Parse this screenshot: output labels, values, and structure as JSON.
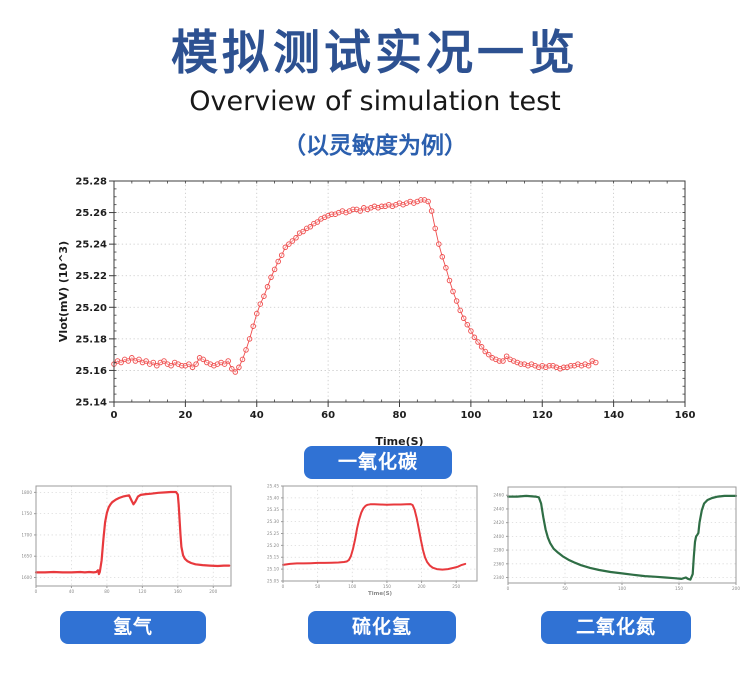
{
  "header": {
    "title": "模拟测试实况一览",
    "subtitle": "Overview of simulation test",
    "note": "（以灵敏度为例）"
  },
  "colors": {
    "title_blue": "#2d5191",
    "note_blue": "#2b5fae",
    "badge_blue": "#3072d4",
    "series_red": "#ef4d4d",
    "series_green": "#2f6e45"
  },
  "labels": {
    "co": "一氧化碳",
    "h2": "氢气",
    "h2s": "硫化氢",
    "no2": "二氧化氮"
  },
  "chart_data": [
    {
      "id": "co",
      "gas": "一氧化碳",
      "type": "scatter",
      "color": "#ef4d4d",
      "xlabel": "Time(S)",
      "ylabel": "Vlot(mV) (10^3)",
      "xlim": [
        0,
        160
      ],
      "ylim": [
        25.14,
        25.28
      ],
      "xticks": [
        "0",
        "20",
        "40",
        "60",
        "80",
        "100",
        "120",
        "140",
        "160"
      ],
      "yticks": [
        "25.14",
        "25.16",
        "25.18",
        "25.20",
        "25.22",
        "25.24",
        "25.26",
        "25.28"
      ],
      "x_minor": 5,
      "y_minor": 0.005,
      "grid": true,
      "points": [
        [
          0,
          25.164
        ],
        [
          1,
          25.166
        ],
        [
          2,
          25.165
        ],
        [
          3,
          25.167
        ],
        [
          4,
          25.166
        ],
        [
          5,
          25.168
        ],
        [
          6,
          25.166
        ],
        [
          7,
          25.167
        ],
        [
          8,
          25.165
        ],
        [
          9,
          25.166
        ],
        [
          10,
          25.164
        ],
        [
          11,
          25.165
        ],
        [
          12,
          25.163
        ],
        [
          13,
          25.165
        ],
        [
          14,
          25.166
        ],
        [
          15,
          25.164
        ],
        [
          16,
          25.163
        ],
        [
          17,
          25.165
        ],
        [
          18,
          25.164
        ],
        [
          19,
          25.163
        ],
        [
          20,
          25.163
        ],
        [
          21,
          25.164
        ],
        [
          22,
          25.162
        ],
        [
          23,
          25.164
        ],
        [
          24,
          25.168
        ],
        [
          25,
          25.167
        ],
        [
          26,
          25.165
        ],
        [
          27,
          25.164
        ],
        [
          28,
          25.163
        ],
        [
          29,
          25.164
        ],
        [
          30,
          25.165
        ],
        [
          31,
          25.164
        ],
        [
          32,
          25.166
        ],
        [
          33,
          25.161
        ],
        [
          34,
          25.159
        ],
        [
          35,
          25.162
        ],
        [
          36,
          25.167
        ],
        [
          37,
          25.173
        ],
        [
          38,
          25.18
        ],
        [
          39,
          25.188
        ],
        [
          40,
          25.196
        ],
        [
          41,
          25.202
        ],
        [
          42,
          25.207
        ],
        [
          43,
          25.213
        ],
        [
          44,
          25.219
        ],
        [
          45,
          25.224
        ],
        [
          46,
          25.229
        ],
        [
          47,
          25.233
        ],
        [
          48,
          25.238
        ],
        [
          49,
          25.24
        ],
        [
          50,
          25.242
        ],
        [
          51,
          25.244
        ],
        [
          52,
          25.247
        ],
        [
          53,
          25.248
        ],
        [
          54,
          25.25
        ],
        [
          55,
          25.251
        ],
        [
          56,
          25.253
        ],
        [
          57,
          25.254
        ],
        [
          58,
          25.256
        ],
        [
          59,
          25.257
        ],
        [
          60,
          25.258
        ],
        [
          61,
          25.259
        ],
        [
          62,
          25.259
        ],
        [
          63,
          25.26
        ],
        [
          64,
          25.261
        ],
        [
          65,
          25.26
        ],
        [
          66,
          25.261
        ],
        [
          67,
          25.262
        ],
        [
          68,
          25.262
        ],
        [
          69,
          25.261
        ],
        [
          70,
          25.263
        ],
        [
          71,
          25.262
        ],
        [
          72,
          25.263
        ],
        [
          73,
          25.264
        ],
        [
          74,
          25.263
        ],
        [
          75,
          25.264
        ],
        [
          76,
          25.264
        ],
        [
          77,
          25.265
        ],
        [
          78,
          25.264
        ],
        [
          79,
          25.265
        ],
        [
          80,
          25.266
        ],
        [
          81,
          25.265
        ],
        [
          82,
          25.266
        ],
        [
          83,
          25.267
        ],
        [
          84,
          25.266
        ],
        [
          85,
          25.267
        ],
        [
          86,
          25.268
        ],
        [
          87,
          25.268
        ],
        [
          88,
          25.267
        ],
        [
          89,
          25.261
        ],
        [
          90,
          25.25
        ],
        [
          91,
          25.24
        ],
        [
          92,
          25.232
        ],
        [
          93,
          25.225
        ],
        [
          94,
          25.217
        ],
        [
          95,
          25.21
        ],
        [
          96,
          25.204
        ],
        [
          97,
          25.198
        ],
        [
          98,
          25.193
        ],
        [
          99,
          25.189
        ],
        [
          100,
          25.185
        ],
        [
          101,
          25.181
        ],
        [
          102,
          25.178
        ],
        [
          103,
          25.175
        ],
        [
          104,
          25.172
        ],
        [
          105,
          25.17
        ],
        [
          106,
          25.168
        ],
        [
          107,
          25.167
        ],
        [
          108,
          25.166
        ],
        [
          109,
          25.166
        ],
        [
          110,
          25.169
        ],
        [
          111,
          25.167
        ],
        [
          112,
          25.166
        ],
        [
          113,
          25.165
        ],
        [
          114,
          25.164
        ],
        [
          115,
          25.164
        ],
        [
          116,
          25.163
        ],
        [
          117,
          25.164
        ],
        [
          118,
          25.163
        ],
        [
          119,
          25.162
        ],
        [
          120,
          25.163
        ],
        [
          121,
          25.162
        ],
        [
          122,
          25.163
        ],
        [
          123,
          25.163
        ],
        [
          124,
          25.162
        ],
        [
          125,
          25.161
        ],
        [
          126,
          25.162
        ],
        [
          127,
          25.162
        ],
        [
          128,
          25.163
        ],
        [
          129,
          25.163
        ],
        [
          130,
          25.164
        ],
        [
          131,
          25.163
        ],
        [
          132,
          25.164
        ],
        [
          133,
          25.163
        ],
        [
          134,
          25.166
        ],
        [
          135,
          25.165
        ]
      ]
    },
    {
      "id": "h2",
      "gas": "氢气",
      "type": "line",
      "color": "#e8393d",
      "xlabel": "",
      "ylabel": "",
      "xlim": [
        0,
        220
      ],
      "ylim": [
        1580,
        1815
      ],
      "xticks": [
        "0",
        "40",
        "80",
        "120",
        "160",
        "200"
      ],
      "yticks": [
        "1600",
        "1650",
        "1700",
        "1750",
        "1800"
      ],
      "grid": true,
      "points": [
        [
          0,
          1612
        ],
        [
          10,
          1612
        ],
        [
          20,
          1613
        ],
        [
          30,
          1612
        ],
        [
          40,
          1612
        ],
        [
          50,
          1613
        ],
        [
          55,
          1612
        ],
        [
          60,
          1613
        ],
        [
          65,
          1612
        ],
        [
          68,
          1613
        ],
        [
          70,
          1617
        ],
        [
          71,
          1608
        ],
        [
          72,
          1613
        ],
        [
          74,
          1640
        ],
        [
          76,
          1690
        ],
        [
          78,
          1730
        ],
        [
          80,
          1752
        ],
        [
          82,
          1765
        ],
        [
          84,
          1772
        ],
        [
          86,
          1777
        ],
        [
          90,
          1783
        ],
        [
          94,
          1787
        ],
        [
          98,
          1790
        ],
        [
          102,
          1792
        ],
        [
          105,
          1793
        ],
        [
          108,
          1780
        ],
        [
          110,
          1772
        ],
        [
          112,
          1778
        ],
        [
          115,
          1790
        ],
        [
          118,
          1794
        ],
        [
          124,
          1796
        ],
        [
          130,
          1797
        ],
        [
          138,
          1799
        ],
        [
          146,
          1800
        ],
        [
          152,
          1801
        ],
        [
          158,
          1801
        ],
        [
          160,
          1795
        ],
        [
          161,
          1770
        ],
        [
          162,
          1735
        ],
        [
          163,
          1700
        ],
        [
          164,
          1672
        ],
        [
          166,
          1652
        ],
        [
          168,
          1644
        ],
        [
          171,
          1638
        ],
        [
          175,
          1634
        ],
        [
          180,
          1631
        ],
        [
          188,
          1629
        ],
        [
          196,
          1628
        ],
        [
          205,
          1627
        ],
        [
          212,
          1628
        ],
        [
          218,
          1628
        ]
      ]
    },
    {
      "id": "h2s",
      "gas": "硫化氢",
      "type": "line",
      "color": "#e8393d",
      "xlabel": "Time(S)",
      "ylabel": "",
      "xlim": [
        0,
        280
      ],
      "ylim": [
        25.05,
        25.45
      ],
      "xticks": [
        "0",
        "50",
        "100",
        "150",
        "200",
        "250"
      ],
      "yticks": [
        "25.05",
        "25.10",
        "25.15",
        "25.20",
        "25.25",
        "25.30",
        "25.35",
        "25.40",
        "25.45"
      ],
      "grid": true,
      "points": [
        [
          0,
          25.118
        ],
        [
          10,
          25.122
        ],
        [
          20,
          25.124
        ],
        [
          30,
          25.124
        ],
        [
          40,
          25.125
        ],
        [
          50,
          25.126
        ],
        [
          60,
          25.126
        ],
        [
          70,
          25.127
        ],
        [
          80,
          25.128
        ],
        [
          88,
          25.13
        ],
        [
          92,
          25.132
        ],
        [
          95,
          25.138
        ],
        [
          98,
          25.155
        ],
        [
          101,
          25.185
        ],
        [
          104,
          25.225
        ],
        [
          107,
          25.272
        ],
        [
          110,
          25.31
        ],
        [
          113,
          25.338
        ],
        [
          116,
          25.356
        ],
        [
          119,
          25.366
        ],
        [
          122,
          25.371
        ],
        [
          126,
          25.373
        ],
        [
          132,
          25.373
        ],
        [
          140,
          25.372
        ],
        [
          150,
          25.371
        ],
        [
          160,
          25.372
        ],
        [
          170,
          25.372
        ],
        [
          178,
          25.373
        ],
        [
          184,
          25.374
        ],
        [
          187,
          25.37
        ],
        [
          190,
          25.35
        ],
        [
          193,
          25.315
        ],
        [
          196,
          25.27
        ],
        [
          199,
          25.222
        ],
        [
          202,
          25.18
        ],
        [
          205,
          25.15
        ],
        [
          208,
          25.13
        ],
        [
          212,
          25.115
        ],
        [
          216,
          25.106
        ],
        [
          222,
          25.1
        ],
        [
          230,
          25.098
        ],
        [
          238,
          25.1
        ],
        [
          246,
          25.105
        ],
        [
          252,
          25.11
        ],
        [
          258,
          25.118
        ],
        [
          263,
          25.122
        ]
      ]
    },
    {
      "id": "no2",
      "gas": "二氧化氮",
      "type": "line",
      "color": "#2f6e45",
      "xlabel": "",
      "ylabel": "",
      "xlim": [
        0,
        200
      ],
      "ylim": [
        2332,
        2472
      ],
      "xticks": [
        "0",
        "50",
        "100",
        "150",
        "200"
      ],
      "yticks": [
        "2340",
        "2360",
        "2380",
        "2400",
        "2420",
        "2440",
        "2460"
      ],
      "grid": true,
      "points": [
        [
          0,
          2458
        ],
        [
          8,
          2458
        ],
        [
          16,
          2459
        ],
        [
          24,
          2458
        ],
        [
          27,
          2457
        ],
        [
          29,
          2448
        ],
        [
          31,
          2428
        ],
        [
          33,
          2410
        ],
        [
          35,
          2398
        ],
        [
          37,
          2390
        ],
        [
          40,
          2382
        ],
        [
          44,
          2376
        ],
        [
          48,
          2371
        ],
        [
          53,
          2366
        ],
        [
          58,
          2362
        ],
        [
          64,
          2358
        ],
        [
          72,
          2354
        ],
        [
          80,
          2351
        ],
        [
          90,
          2348
        ],
        [
          100,
          2346
        ],
        [
          110,
          2344
        ],
        [
          120,
          2342
        ],
        [
          130,
          2341
        ],
        [
          138,
          2340
        ],
        [
          146,
          2339
        ],
        [
          152,
          2338
        ],
        [
          156,
          2340
        ],
        [
          158,
          2338
        ],
        [
          160,
          2337
        ],
        [
          162,
          2345
        ],
        [
          163,
          2370
        ],
        [
          164,
          2392
        ],
        [
          165,
          2400
        ],
        [
          166,
          2402
        ],
        [
          167,
          2405
        ],
        [
          168,
          2420
        ],
        [
          170,
          2438
        ],
        [
          172,
          2448
        ],
        [
          175,
          2453
        ],
        [
          179,
          2456
        ],
        [
          184,
          2458
        ],
        [
          190,
          2459
        ],
        [
          196,
          2459
        ],
        [
          200,
          2459
        ]
      ]
    }
  ]
}
